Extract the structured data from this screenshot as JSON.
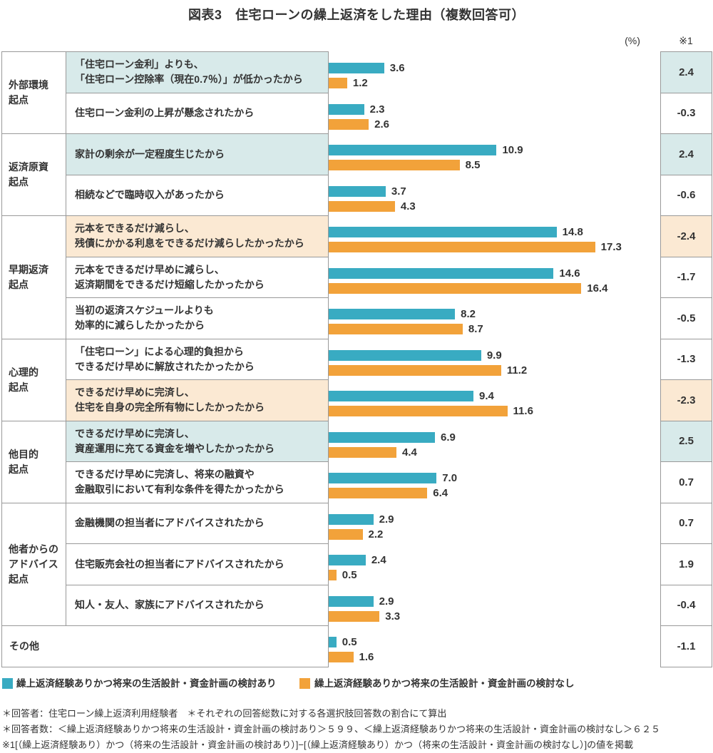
{
  "title": "図表3　住宅ローンの繰上返済をした理由（複数回答可）",
  "percent_label": "(%)",
  "ref_label": "※1",
  "colors": {
    "bar_with_plan": "#39ABC2",
    "bar_without_plan": "#F2A23A",
    "highlight_teal": "#D8EAEA",
    "highlight_peach": "#FBE9D3",
    "border": "#999999",
    "text": "#333333"
  },
  "legend": [
    {
      "label": "繰上返済経験ありかつ将来の生活設計・資金計画の検討あり",
      "color_key": "bar_with_plan"
    },
    {
      "label": "繰上返済経験ありかつ将来の生活設計・資金計画の検討なし",
      "color_key": "bar_without_plan"
    }
  ],
  "footnotes": [
    "＊回答者：住宅ローン繰上返済利用経験者　＊それぞれの回答総数に対する各選択肢回答数の割合にて算出",
    "＊回答者数：＜繰上返済経験ありかつ将来の生活設計・資金計画の検討あり＞５９９、＜繰上返済経験ありかつ将来の生活設計・資金計画の検討なし＞６２５",
    "※1[（繰上返済経験あり）かつ（将来の生活設計・資金計画の検討あり）]−[（繰上返済経験あり）かつ（将来の生活設計・資金計画の検討なし）]の値を掲載"
  ],
  "chart_data": {
    "type": "bar",
    "orientation": "horizontal",
    "unit": "%",
    "value_axis_hidden": true,
    "series": [
      "繰上返済経験ありかつ将来の生活設計・資金計画の検討あり",
      "繰上返済経験ありかつ将来の生活設計・資金計画の検討なし"
    ],
    "diff_column_label": "※1",
    "groups": [
      {
        "label": "外部環境\n起点",
        "rows": [
          {
            "reason": "「住宅ローン金利」よりも、\n「住宅ローン控除率（現在0.7％）」が低かったから",
            "with_plan": "3.6",
            "without_plan": "1.2",
            "diff": "2.4",
            "highlight": "teal"
          },
          {
            "reason": "住宅ローン金利の上昇が懸念されたから",
            "with_plan": "2.3",
            "without_plan": "2.6",
            "diff": "-0.3",
            "highlight": null
          }
        ]
      },
      {
        "label": "返済原資\n起点",
        "rows": [
          {
            "reason": "家計の剰余が一定程度生じたから",
            "with_plan": "10.9",
            "without_plan": "8.5",
            "diff": "2.4",
            "highlight": "teal"
          },
          {
            "reason": "相続などで臨時収入があったから",
            "with_plan": "3.7",
            "without_plan": "4.3",
            "diff": "-0.6",
            "highlight": null
          }
        ]
      },
      {
        "label": "早期返済\n起点",
        "rows": [
          {
            "reason": "元本をできるだけ減らし、\n残債にかかる利息をできるだけ減らしたかったから",
            "with_plan": "14.8",
            "without_plan": "17.3",
            "diff": "-2.4",
            "highlight": "peach"
          },
          {
            "reason": "元本をできるだけ早めに減らし、\n返済期間をできるだけ短縮したかったから",
            "with_plan": "14.6",
            "without_plan": "16.4",
            "diff": "-1.7",
            "highlight": null
          },
          {
            "reason": "当初の返済スケジュールよりも\n効率的に減らしたかったから",
            "with_plan": "8.2",
            "without_plan": "8.7",
            "diff": "-0.5",
            "highlight": null
          }
        ]
      },
      {
        "label": "心理的\n起点",
        "rows": [
          {
            "reason": "「住宅ローン」による心理的負担から\nできるだけ早めに解放されたかったから",
            "with_plan": "9.9",
            "without_plan": "11.2",
            "diff": "-1.3",
            "highlight": null
          },
          {
            "reason": "できるだけ早めに完済し、\n住宅を自身の完全所有物にしたかったから",
            "with_plan": "9.4",
            "without_plan": "11.6",
            "diff": "-2.3",
            "highlight": "peach"
          }
        ]
      },
      {
        "label": "他目的\n起点",
        "rows": [
          {
            "reason": "できるだけ早めに完済し、\n資産運用に充てる資金を増やしたかったから",
            "with_plan": "6.9",
            "without_plan": "4.4",
            "diff": "2.5",
            "highlight": "teal"
          },
          {
            "reason": "できるだけ早めに完済し、将来の融資や\n金融取引において有利な条件を得たかったから",
            "with_plan": "7.0",
            "without_plan": "6.4",
            "diff": "0.7",
            "highlight": null
          }
        ]
      },
      {
        "label": "他者からの\nアドバイス\n起点",
        "rows": [
          {
            "reason": "金融機関の担当者にアドバイスされたから",
            "with_plan": "2.9",
            "without_plan": "2.2",
            "diff": "0.7",
            "highlight": null
          },
          {
            "reason": "住宅販売会社の担当者にアドバイスされたから",
            "with_plan": "2.4",
            "without_plan": "0.5",
            "diff": "1.9",
            "highlight": null
          },
          {
            "reason": "知人・友人、家族にアドバイスされたから",
            "with_plan": "2.9",
            "without_plan": "3.3",
            "diff": "-0.4",
            "highlight": null
          }
        ]
      },
      {
        "label": "その他",
        "rows": [
          {
            "reason": null,
            "merged": true,
            "with_plan": "0.5",
            "without_plan": "1.6",
            "diff": "-1.1",
            "highlight": null
          }
        ]
      }
    ]
  }
}
